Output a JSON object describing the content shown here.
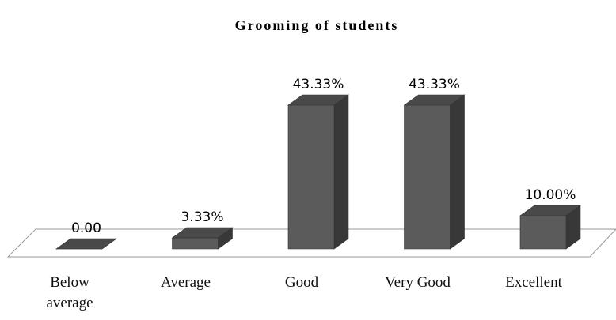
{
  "chart_data": {
    "type": "bar3d",
    "title": "Grooming of students",
    "categories": [
      "Below average",
      "Average",
      "Good",
      "Very Good",
      "Excellent"
    ],
    "values": [
      0,
      3.33,
      43.33,
      43.33,
      10
    ],
    "value_labels": [
      "0.00",
      "3.33%",
      "43.33%",
      "43.33%",
      "10.00%"
    ],
    "color": "#5b5b5b"
  }
}
